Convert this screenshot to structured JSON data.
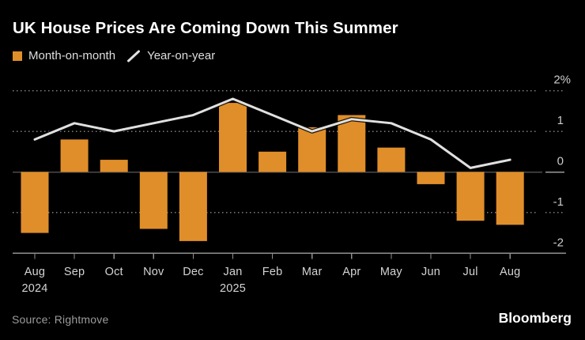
{
  "header": {
    "title": "UK House Prices Are Coming Down This Summer"
  },
  "legend": [
    {
      "label": "Month-on-month",
      "marker": "square-icon",
      "color": "#E08E2A"
    },
    {
      "label": "Year-on-year",
      "marker": "slash-icon",
      "color": "#E0E0E0"
    }
  ],
  "footer": {
    "source": "Source: Rightmove",
    "brand": "Bloomberg"
  },
  "colors": {
    "background": "#000000",
    "bar": "#E08E2A",
    "line": "#E0E0E0",
    "grid_dotted": "#7E7E7E",
    "zero_line": "#4C4C4E",
    "zero_line_right_segment": "#9A9A9A",
    "bottom_axis": "#909090",
    "y_axis_labels": "#CCCCCC",
    "x_axis_labels": "#D4D4D4",
    "title_text": "#FFFFFF",
    "source_text": "#9C9C9C"
  },
  "chart_data": {
    "type": "bar",
    "categories": [
      "Aug",
      "Sep",
      "Oct",
      "Nov",
      "Dec",
      "Jan",
      "Feb",
      "Mar",
      "Apr",
      "May",
      "Jun",
      "Jul",
      "Aug"
    ],
    "category_years": [
      {
        "index": 0,
        "year": "2024"
      },
      {
        "index": 5,
        "year": "2025"
      }
    ],
    "series": [
      {
        "name": "Month-on-month",
        "type": "bar",
        "color": "#E08E2A",
        "values": [
          -1.5,
          0.8,
          0.3,
          -1.4,
          -1.7,
          1.7,
          0.5,
          1.1,
          1.4,
          0.6,
          -0.3,
          -1.2,
          -1.3
        ]
      },
      {
        "name": "Year-on-year",
        "type": "line",
        "color": "#E0E0E0",
        "values": [
          0.8,
          1.2,
          1.0,
          1.2,
          1.4,
          1.8,
          1.4,
          1.0,
          1.3,
          1.2,
          0.8,
          0.1,
          0.3
        ]
      }
    ],
    "title": "UK House Prices Are Coming Down This Summer",
    "xlabel": "",
    "ylabel": "",
    "unit": "%",
    "ylim": [
      -2,
      2
    ],
    "yticks": [
      {
        "value": 2,
        "label": "2",
        "suffix": "%"
      },
      {
        "value": 1,
        "label": "1"
      },
      {
        "value": 0,
        "label": "0"
      },
      {
        "value": -1,
        "label": "-1"
      },
      {
        "value": -2,
        "label": "-2"
      }
    ],
    "grid": {
      "horizontal": true,
      "style": "dotted"
    },
    "legend_position": "top-left",
    "y_axis_side": "right"
  }
}
